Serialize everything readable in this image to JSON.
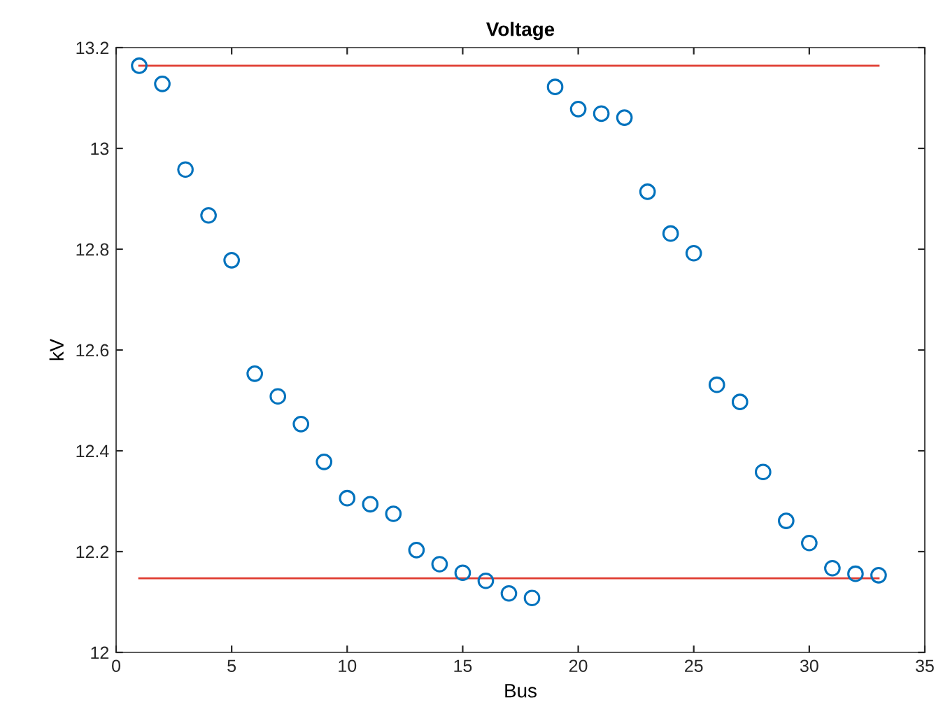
{
  "chart_data": {
    "type": "scatter",
    "title": "Voltage",
    "xlabel": "Bus",
    "ylabel": "kV",
    "xlim": [
      0,
      35
    ],
    "xticks": [
      0,
      5,
      10,
      15,
      20,
      25,
      30,
      35
    ],
    "ylim": [
      12,
      13.2
    ],
    "yticks": [
      12,
      {
        "value": 12.2,
        "label": "12.2"
      },
      {
        "value": 12.4,
        "label": "12.4"
      },
      {
        "value": 12.6,
        "label": "12.6"
      },
      {
        "value": 12.8,
        "label": "12.8"
      },
      13,
      {
        "value": 13.2,
        "label": "13.2"
      }
    ],
    "grid": false,
    "marker": "circle",
    "series": [
      {
        "color": "#0072bd",
        "x": [
          1,
          2,
          3,
          4,
          5,
          6,
          7,
          8,
          9,
          10,
          11,
          12,
          13,
          14,
          15,
          16,
          17,
          18,
          19,
          20,
          21,
          22,
          23,
          24,
          25,
          26,
          27,
          28,
          29,
          30,
          31,
          32,
          33
        ],
        "values": [
          13.164,
          13.128,
          12.958,
          12.867,
          12.778,
          12.553,
          12.508,
          12.453,
          12.378,
          12.306,
          12.294,
          12.275,
          12.203,
          12.175,
          12.158,
          12.142,
          12.117,
          12.108,
          13.122,
          13.078,
          13.069,
          13.061,
          12.914,
          12.831,
          12.792,
          12.531,
          12.497,
          12.358,
          12.261,
          12.217,
          12.167,
          12.156,
          12.153
        ]
      },
      {
        "type": "line",
        "color": "#e03c31",
        "x": [
          1,
          33
        ],
        "values": [
          13.164,
          13.164
        ],
        "marker": "none"
      },
      {
        "type": "line",
        "color": "#e03c31",
        "x": [
          1,
          33
        ],
        "values": [
          12.147,
          12.147
        ],
        "marker": "none"
      }
    ]
  }
}
